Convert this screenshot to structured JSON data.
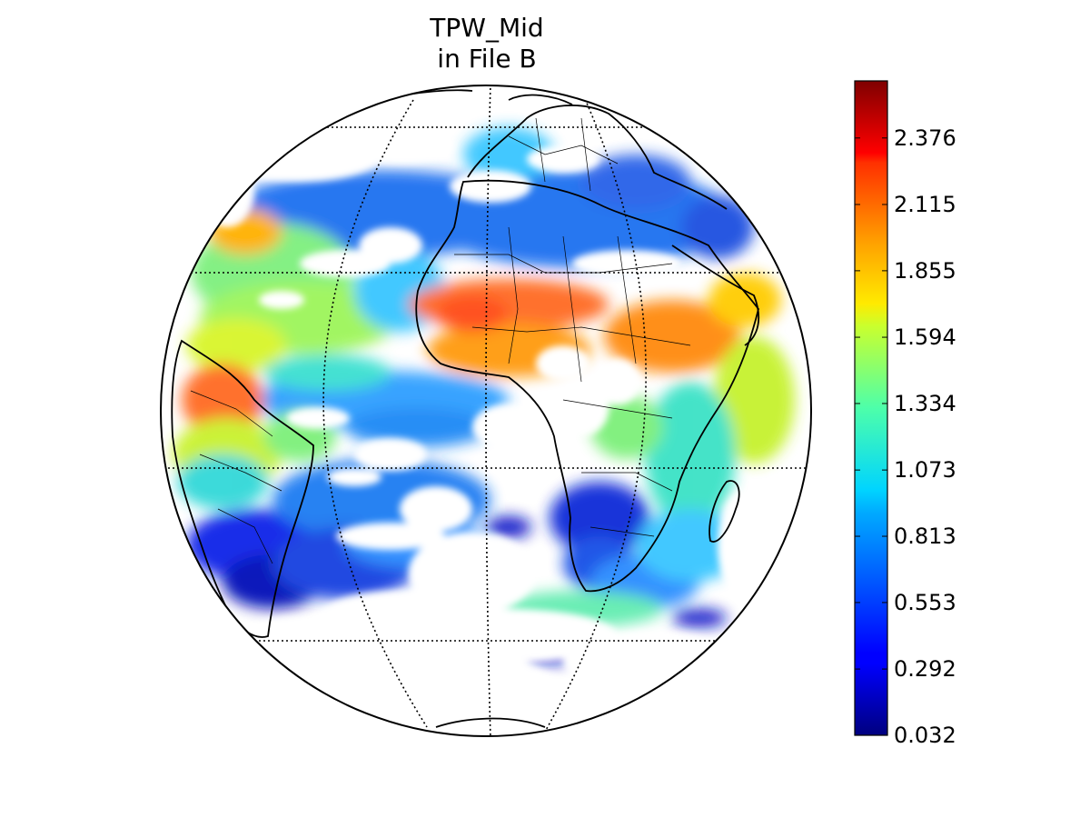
{
  "title": {
    "line1": "TPW_Mid",
    "line2": "in File B"
  },
  "colorbar": {
    "colormap": "jet",
    "min": 0.032,
    "max": 2.6,
    "ticks": [
      {
        "value": 0.032,
        "label": "0.032"
      },
      {
        "value": 0.292,
        "label": "0.292"
      },
      {
        "value": 0.553,
        "label": "0.553"
      },
      {
        "value": 0.813,
        "label": "0.813"
      },
      {
        "value": 1.073,
        "label": "1.073"
      },
      {
        "value": 1.334,
        "label": "1.334"
      },
      {
        "value": 1.594,
        "label": "1.594"
      },
      {
        "value": 1.855,
        "label": "1.855"
      },
      {
        "value": 2.115,
        "label": "2.115"
      },
      {
        "value": 2.376,
        "label": "2.376"
      }
    ]
  },
  "map": {
    "projection": "orthographic",
    "center": "Atlantic / Africa",
    "graticule": "dotted",
    "background": "#ffffff"
  }
}
